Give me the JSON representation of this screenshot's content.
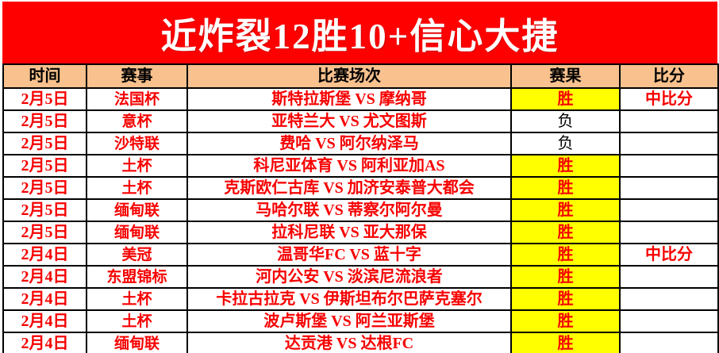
{
  "banner": {
    "title": "近炸裂12胜10+信心大捷"
  },
  "colors": {
    "banner_bg": "#FE0000",
    "banner_text": "#FFFFFF",
    "header_bg": "#F8C18D",
    "accent_red": "#F70000",
    "win_bg": "#FFFF00",
    "loss_text": "#000000",
    "border": "#000000"
  },
  "table": {
    "columns": [
      {
        "label": "时间"
      },
      {
        "label": "赛事"
      },
      {
        "label": "比赛场次"
      },
      {
        "label": "赛果"
      },
      {
        "label": "比分"
      }
    ],
    "win_label": "胜",
    "loss_label": "负",
    "rows": [
      {
        "date": "2月5日",
        "league": "法国杯",
        "match": "斯特拉斯堡 VS 摩纳哥",
        "result": "胜",
        "score": "中比分"
      },
      {
        "date": "2月5日",
        "league": "意杯",
        "match": "亚特兰大 VS 尤文图斯",
        "result": "负",
        "score": ""
      },
      {
        "date": "2月5日",
        "league": "沙特联",
        "match": "费哈 VS 阿尔纳泽马",
        "result": "负",
        "score": ""
      },
      {
        "date": "2月5日",
        "league": "土杯",
        "match": "科尼亚体育 VS 阿利亚加AS",
        "result": "胜",
        "score": ""
      },
      {
        "date": "2月5日",
        "league": "土杯",
        "match": "克斯欧仁古库 VS 加济安泰普大都会",
        "result": "胜",
        "score": ""
      },
      {
        "date": "2月5日",
        "league": "缅甸联",
        "match": "马哈尔联 VS 蒂察尔阿尔曼",
        "result": "胜",
        "score": ""
      },
      {
        "date": "2月5日",
        "league": "缅甸联",
        "match": "拉科尼联 VS 亚大那保",
        "result": "胜",
        "score": ""
      },
      {
        "date": "2月4日",
        "league": "美冠",
        "match": "温哥华FC VS 蓝十字",
        "result": "胜",
        "score": "中比分"
      },
      {
        "date": "2月4日",
        "league": "东盟锦标",
        "match": "河内公安 VS 淡滨尼流浪者",
        "result": "胜",
        "score": ""
      },
      {
        "date": "2月4日",
        "league": "土杯",
        "match": "卡拉古拉克 VS 伊斯坦布尔巴萨克塞尔",
        "result": "胜",
        "score": ""
      },
      {
        "date": "2月4日",
        "league": "土杯",
        "match": "波卢斯堡 VS 阿兰亚斯堡",
        "result": "胜",
        "score": ""
      },
      {
        "date": "2月4日",
        "league": "缅甸联",
        "match": "达贡港 VS 达根FC",
        "result": "胜",
        "score": ""
      }
    ]
  }
}
